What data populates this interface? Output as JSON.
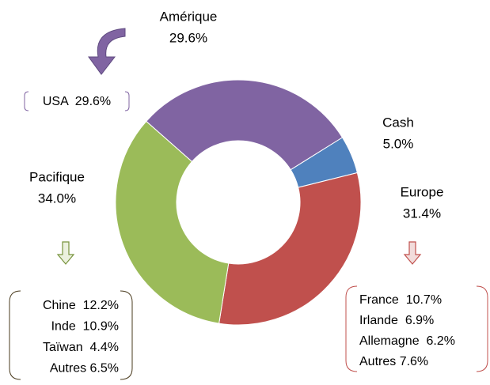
{
  "chart_data": {
    "type": "donut",
    "categories": [
      "Cash",
      "Europe",
      "Pacifique",
      "Amérique"
    ],
    "values": [
      5.0,
      31.4,
      34.0,
      29.6
    ],
    "value_labels": [
      "5.0%",
      "31.4%",
      "34.0%",
      "29.6%"
    ],
    "colors": [
      "#4f81bd",
      "#c0504d",
      "#9bbb59",
      "#8064a2"
    ],
    "annotations": {
      "amerique": [
        "USA  29.6%"
      ],
      "pacifique": [
        "Chine  12.2%",
        "Inde  10.9%",
        "Taïwan  4.4%",
        "Autres 6.5%"
      ],
      "europe": [
        "France  10.7%",
        "Irlande  6.9%",
        "Allemagne  6.2%",
        "Autres 7.6%"
      ]
    }
  }
}
